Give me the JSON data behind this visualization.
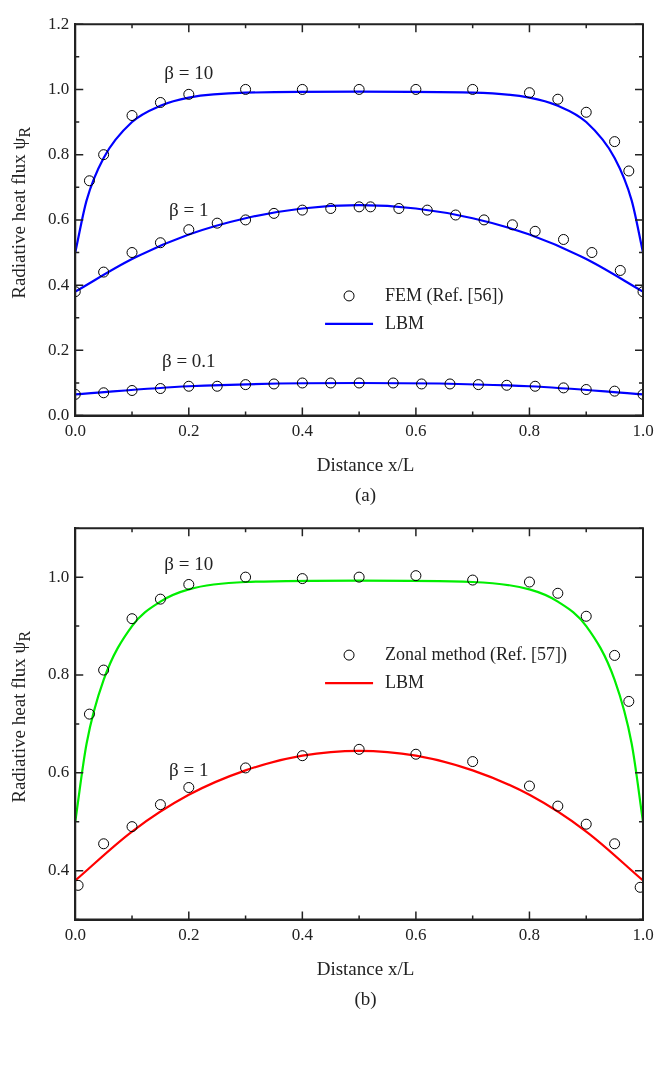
{
  "chart_data": [
    {
      "type": "line",
      "xlabel": "Distance x/L",
      "ylabel": "Radiative heat flux ψ$_{R}$",
      "xlim": [
        0,
        1
      ],
      "ylim": [
        0,
        1.2
      ],
      "xticks": [
        {
          "value": 0,
          "label": "0.0"
        },
        {
          "value": 0.1,
          "label": null
        },
        0.2,
        {
          "value": 0.3,
          "label": null
        },
        0.4,
        {
          "value": 0.5,
          "label": null
        },
        0.6,
        {
          "value": 0.7,
          "label": null
        },
        0.8,
        {
          "value": 0.9,
          "label": null
        },
        {
          "value": 1,
          "label": "1.0"
        }
      ],
      "yticks": [
        {
          "value": 0,
          "label": "0.0"
        },
        {
          "value": 0.1,
          "label": null
        },
        0.2,
        {
          "value": 0.3,
          "label": null
        },
        0.4,
        {
          "value": 0.5,
          "label": null
        },
        0.6,
        {
          "value": 0.7,
          "label": null
        },
        0.8,
        {
          "value": 0.9,
          "label": null
        },
        {
          "value": 1,
          "label": "1.0"
        },
        {
          "value": 1.1,
          "label": null
        },
        1.2
      ],
      "legend": "bottom right",
      "series": [
        {
          "name": "FEM (Ref. [56])",
          "type": "scatter",
          "marker": "circle",
          "color": "#000000",
          "x": [
            0.025,
            0.05,
            0.1,
            0.15,
            0.2,
            0.3,
            0.4,
            0.5,
            0.6,
            0.7,
            0.8,
            0.85,
            0.9,
            0.95,
            0.975
          ],
          "values": [
            0.72,
            0.8,
            0.92,
            0.96,
            0.985,
            1.0,
            1.0,
            1.0,
            1.0,
            1.0,
            0.99,
            0.97,
            0.93,
            0.84,
            0.75
          ]
        },
        {
          "type": "scatter",
          "marker": "circle",
          "color": "#000000",
          "x": [
            0,
            0.05,
            0.1,
            0.15,
            0.2,
            0.25,
            0.3,
            0.35,
            0.4,
            0.45,
            0.5,
            0.52,
            0.57,
            0.62,
            0.67,
            0.72,
            0.77,
            0.81,
            0.86,
            0.91,
            0.96,
            1.0
          ],
          "values": [
            0.38,
            0.44,
            0.5,
            0.53,
            0.57,
            0.59,
            0.6,
            0.62,
            0.63,
            0.635,
            0.64,
            0.64,
            0.635,
            0.63,
            0.615,
            0.6,
            0.585,
            0.565,
            0.54,
            0.5,
            0.445,
            0.38
          ]
        },
        {
          "type": "scatter",
          "marker": "circle",
          "color": "#000000",
          "x": [
            0,
            0.05,
            0.1,
            0.15,
            0.2,
            0.25,
            0.3,
            0.35,
            0.4,
            0.45,
            0.5,
            0.56,
            0.61,
            0.66,
            0.71,
            0.76,
            0.81,
            0.86,
            0.9,
            0.95,
            1.0
          ],
          "values": [
            0.065,
            0.07,
            0.077,
            0.083,
            0.09,
            0.09,
            0.095,
            0.097,
            0.1,
            0.1,
            0.1,
            0.1,
            0.097,
            0.097,
            0.095,
            0.093,
            0.09,
            0.085,
            0.08,
            0.075,
            0.065
          ]
        },
        {
          "name": "LBM",
          "type": "line",
          "marker": "none",
          "color": "#0000ff",
          "x": [
            0,
            0.02,
            0.05,
            0.1,
            0.15,
            0.2,
            0.3,
            0.5,
            0.7,
            0.8,
            0.85,
            0.9,
            0.95,
            0.98,
            1.0
          ],
          "values": [
            0.5,
            0.66,
            0.79,
            0.9,
            0.95,
            0.975,
            0.99,
            0.993,
            0.99,
            0.975,
            0.95,
            0.9,
            0.79,
            0.66,
            0.5
          ]
        },
        {
          "type": "line",
          "marker": "none",
          "color": "#0000ff",
          "x": [
            0,
            0.1,
            0.2,
            0.3,
            0.4,
            0.5,
            0.6,
            0.7,
            0.8,
            0.9,
            1.0
          ],
          "values": [
            0.38,
            0.48,
            0.555,
            0.605,
            0.635,
            0.645,
            0.635,
            0.605,
            0.555,
            0.48,
            0.38
          ]
        },
        {
          "type": "line",
          "marker": "none",
          "color": "#0000ff",
          "x": [
            0,
            0.2,
            0.5,
            0.8,
            1.0
          ],
          "values": [
            0.065,
            0.09,
            0.1,
            0.09,
            0.065
          ]
        }
      ],
      "annotations": [
        "β = 10",
        "β = 1",
        "β = 0.1",
        "(a)"
      ]
    },
    {
      "type": "line",
      "xlabel": "Distance x/L",
      "ylabel": "Radiative heat flux ψ$_{R}$",
      "xlim": [
        0,
        1
      ],
      "ylim": [
        0.3,
        1.1
      ],
      "xticks": [
        {
          "value": 0,
          "label": "0.0"
        },
        {
          "value": 0.1,
          "label": null
        },
        0.2,
        {
          "value": 0.3,
          "label": null
        },
        0.4,
        {
          "value": 0.5,
          "label": null
        },
        0.6,
        {
          "value": 0.7,
          "label": null
        },
        0.8,
        {
          "value": 0.9,
          "label": null
        },
        {
          "value": 1,
          "label": "1.0"
        }
      ],
      "yticks": [
        {
          "value": 0.3,
          "label": null
        },
        0.4,
        {
          "value": 0.5,
          "label": null
        },
        0.6,
        {
          "value": 0.7,
          "label": null
        },
        0.8,
        {
          "value": 0.9,
          "label": null
        },
        {
          "value": 1,
          "label": "1.0"
        },
        {
          "value": 1.1,
          "label": null
        }
      ],
      "legend": "top right",
      "series": [
        {
          "name": "Zonal method (Ref. [57])",
          "type": "scatter",
          "marker": "circle",
          "color": "#000000",
          "x": [
            0.025,
            0.05,
            0.1,
            0.15,
            0.2,
            0.3,
            0.4,
            0.5,
            0.6,
            0.7,
            0.8,
            0.85,
            0.9,
            0.95,
            0.975
          ],
          "values": [
            0.72,
            0.81,
            0.915,
            0.955,
            0.985,
            1.0,
            0.997,
            1.0,
            1.003,
            0.994,
            0.99,
            0.967,
            0.92,
            0.84,
            0.746
          ]
        },
        {
          "type": "scatter",
          "marker": "circle",
          "color": "#000000",
          "x": [
            0.005,
            0.05,
            0.1,
            0.15,
            0.2,
            0.3,
            0.4,
            0.5,
            0.6,
            0.7,
            0.8,
            0.85,
            0.9,
            0.95,
            0.995
          ],
          "values": [
            0.37,
            0.455,
            0.49,
            0.535,
            0.57,
            0.61,
            0.635,
            0.648,
            0.638,
            0.623,
            0.573,
            0.532,
            0.495,
            0.455,
            0.366
          ]
        },
        {
          "type": "line",
          "marker": "none",
          "color": "#00ee00",
          "x": [
            0,
            0.02,
            0.05,
            0.1,
            0.15,
            0.2,
            0.3,
            0.5,
            0.7,
            0.8,
            0.85,
            0.9,
            0.95,
            0.98,
            1.0
          ],
          "values": [
            0.5,
            0.66,
            0.79,
            0.9,
            0.95,
            0.975,
            0.99,
            0.993,
            0.99,
            0.975,
            0.95,
            0.9,
            0.79,
            0.66,
            0.5
          ]
        },
        {
          "name": "LBM",
          "type": "line",
          "marker": "none",
          "color": "#ff0000",
          "x": [
            0,
            0.1,
            0.2,
            0.3,
            0.4,
            0.5,
            0.6,
            0.7,
            0.8,
            0.9,
            1.0
          ],
          "values": [
            0.38,
            0.48,
            0.555,
            0.605,
            0.635,
            0.645,
            0.635,
            0.605,
            0.555,
            0.48,
            0.38
          ]
        }
      ],
      "annotations": [
        "β = 10",
        "β = 1",
        "(b)"
      ]
    }
  ]
}
